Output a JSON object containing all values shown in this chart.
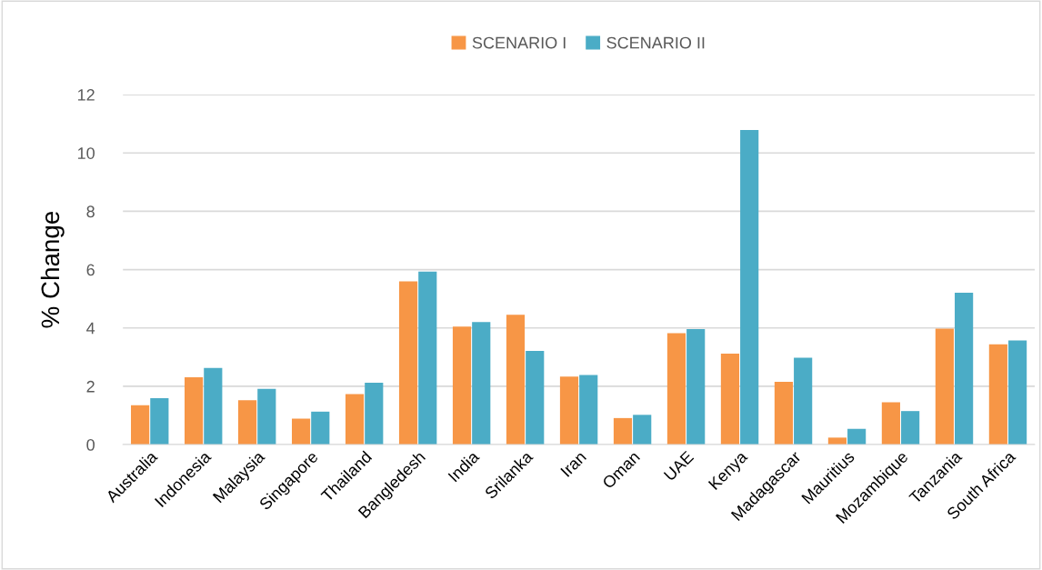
{
  "chart_data": {
    "type": "bar",
    "ylabel": "% Change",
    "categories": [
      "Australia",
      "Indonesia",
      "Malaysia",
      "Singapore",
      "Thailand",
      "Bangledesh",
      "India",
      "Srilanka",
      "Iran",
      "Oman",
      "UAE",
      "Kenya",
      "Madagascar",
      "Mauritius",
      "Mozambique",
      "Tanzania",
      "South Africa"
    ],
    "series": [
      {
        "name": "SCENARIO I",
        "color": "#f79646",
        "values": [
          1.35,
          2.31,
          1.52,
          0.89,
          1.73,
          5.6,
          4.05,
          4.45,
          2.33,
          0.91,
          3.82,
          3.12,
          2.15,
          0.24,
          1.45,
          3.98,
          3.44
        ]
      },
      {
        "name": "SCENARIO II",
        "color": "#4bacc6",
        "values": [
          1.59,
          2.63,
          1.91,
          1.13,
          2.12,
          5.93,
          4.2,
          3.21,
          2.39,
          1.02,
          3.96,
          10.79,
          2.98,
          0.54,
          1.15,
          5.21,
          3.57
        ]
      }
    ],
    "ylim": [
      0,
      12
    ],
    "yticks": [
      0,
      2,
      4,
      6,
      8,
      10,
      12
    ],
    "grid": "y",
    "legend": "top"
  }
}
